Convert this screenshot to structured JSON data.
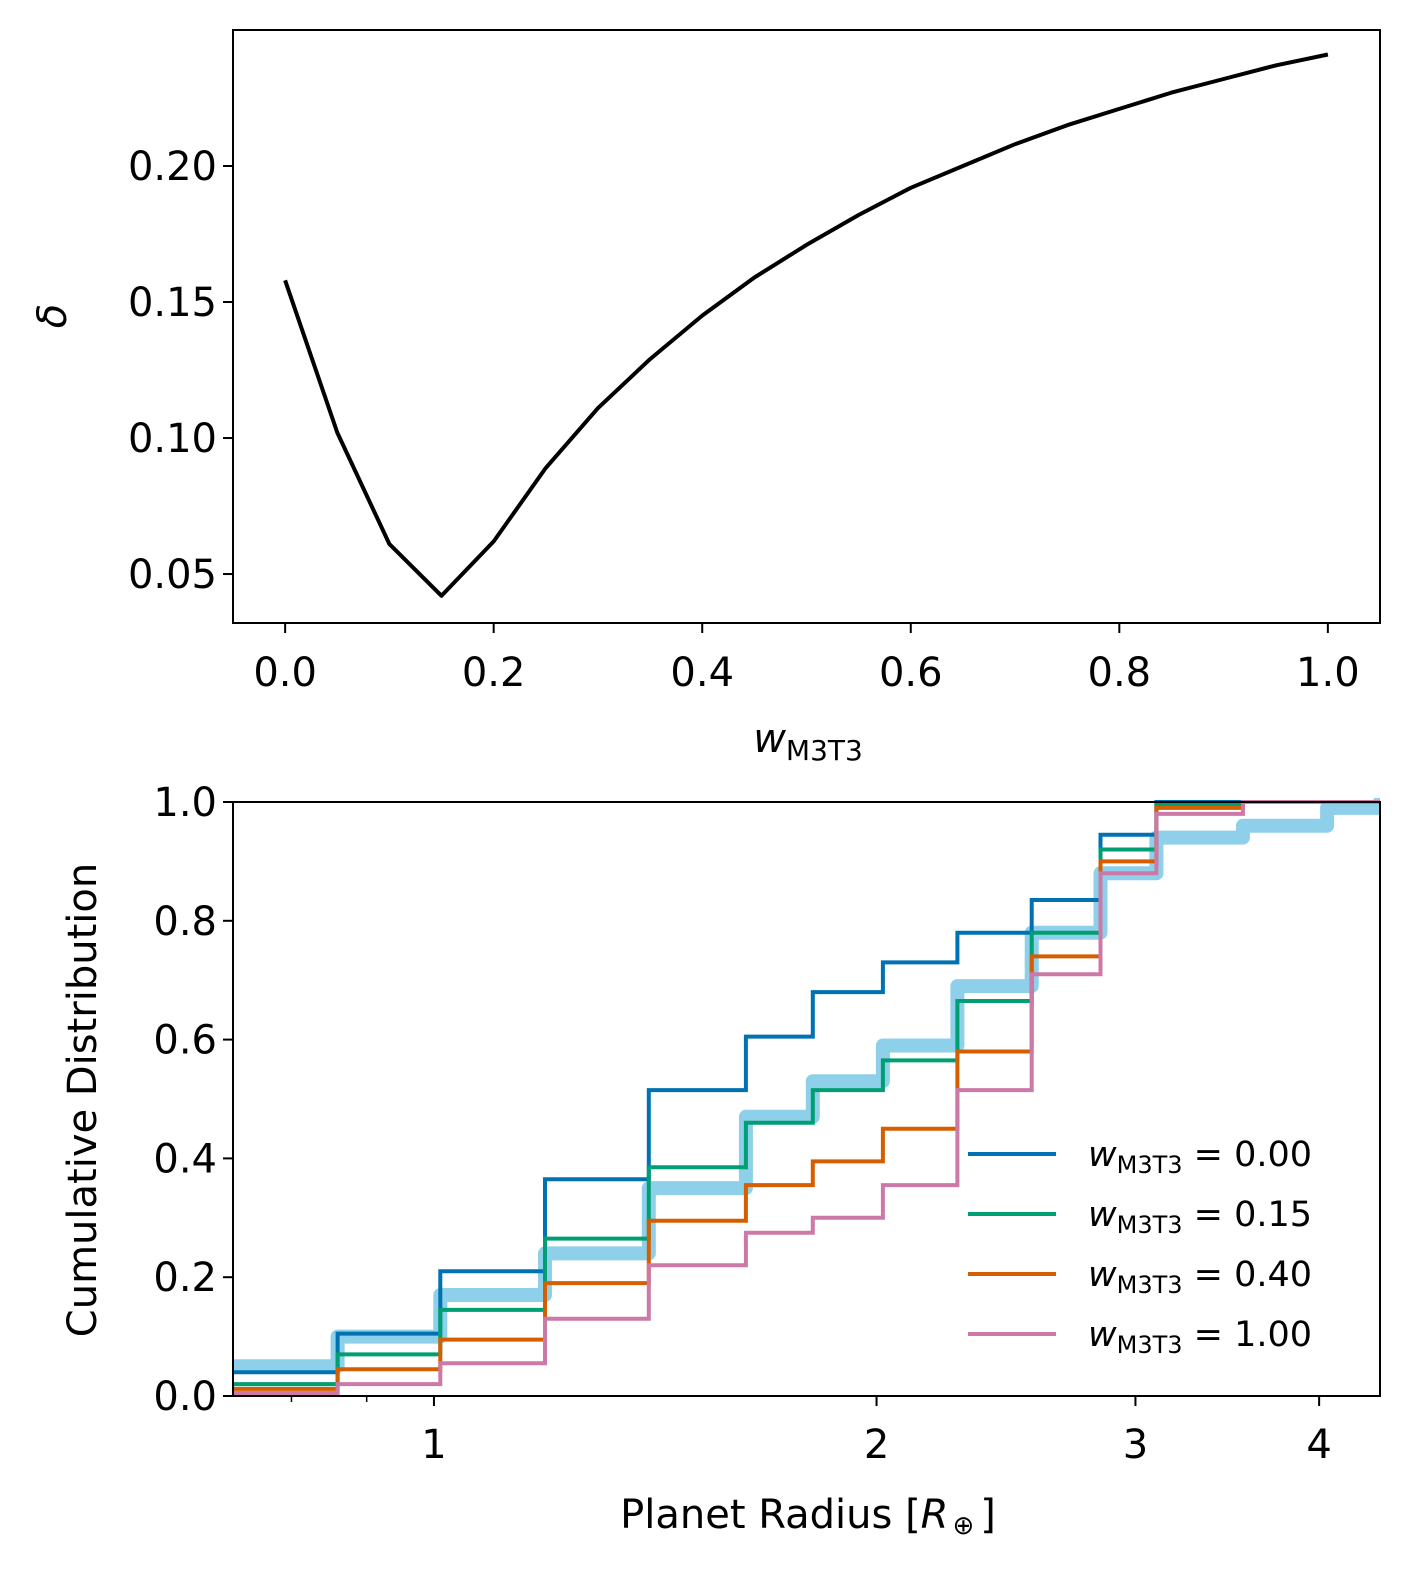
{
  "chart_data": [
    {
      "type": "line",
      "title": "",
      "xlabel": "w",
      "xlabel_sub": "M3T3",
      "ylabel": "δ",
      "xlim": [
        -0.05,
        1.05
      ],
      "ylim": [
        0.032,
        0.25
      ],
      "xticks": [
        0.0,
        0.2,
        0.4,
        0.6,
        0.8,
        1.0
      ],
      "xtick_labels": [
        "0.0",
        "0.2",
        "0.4",
        "0.6",
        "0.8",
        "1.0"
      ],
      "yticks": [
        0.05,
        0.1,
        0.15,
        0.2
      ],
      "ytick_labels": [
        "0.05",
        "0.10",
        "0.15",
        "0.20"
      ],
      "color": "#000000",
      "series": [
        {
          "name": "delta",
          "x": [
            0.0,
            0.05,
            0.1,
            0.15,
            0.2,
            0.25,
            0.3,
            0.35,
            0.4,
            0.45,
            0.5,
            0.55,
            0.6,
            0.65,
            0.7,
            0.75,
            0.8,
            0.85,
            0.9,
            0.95,
            1.0
          ],
          "y": [
            0.158,
            0.102,
            0.061,
            0.042,
            0.062,
            0.089,
            0.111,
            0.129,
            0.145,
            0.159,
            0.171,
            0.182,
            0.192,
            0.2,
            0.208,
            0.215,
            0.221,
            0.227,
            0.232,
            0.237,
            0.241
          ]
        }
      ]
    },
    {
      "type": "step",
      "title": "",
      "xlabel": "Planet Radius [R⊕]",
      "xlabel_main": "Planet Radius [",
      "xlabel_sym": "R",
      "xlabel_sub": "⊕",
      "xlabel_end": "]",
      "ylabel": "Cumulative Distribution",
      "xscale": "log",
      "xlim": [
        0.73,
        4.4
      ],
      "ylim": [
        0.0,
        1.0
      ],
      "xticks": [
        1,
        2,
        3,
        4
      ],
      "xtick_labels": [
        "1",
        "2",
        "3",
        "4"
      ],
      "minor_xticks": [
        0.8,
        0.9
      ],
      "yticks": [
        0.0,
        0.2,
        0.4,
        0.6,
        0.8,
        1.0
      ],
      "ytick_labels": [
        "0.0",
        "0.2",
        "0.4",
        "0.6",
        "0.8",
        "1.0"
      ],
      "legend_position": "lower-right",
      "bin_edges": [
        0.73,
        0.86,
        1.01,
        1.19,
        1.4,
        1.63,
        1.81,
        2.02,
        2.27,
        2.55,
        2.84,
        3.1,
        3.55,
        4.05,
        4.4
      ],
      "observed": {
        "name": "observed",
        "color": "#8ecfea",
        "values": [
          0.05,
          0.1,
          0.17,
          0.24,
          0.35,
          0.47,
          0.53,
          0.59,
          0.69,
          0.78,
          0.88,
          0.94,
          0.96,
          0.99,
          1.0
        ]
      },
      "series": [
        {
          "name": "w_M3T3 = 0.00",
          "legend_prefix": "w",
          "legend_sub": "M3T3",
          "legend_value": " = 0.00",
          "color": "#0072b2",
          "values": [
            0.04,
            0.105,
            0.21,
            0.365,
            0.515,
            0.605,
            0.68,
            0.73,
            0.78,
            0.835,
            0.945,
            1.0,
            1.0,
            1.0,
            1.0
          ]
        },
        {
          "name": "w_M3T3 = 0.15",
          "legend_prefix": "w",
          "legend_sub": "M3T3",
          "legend_value": " = 0.15",
          "color": "#009e73",
          "values": [
            0.02,
            0.07,
            0.145,
            0.265,
            0.385,
            0.46,
            0.515,
            0.565,
            0.665,
            0.78,
            0.92,
            0.995,
            1.0,
            1.0,
            1.0
          ]
        },
        {
          "name": "w_M3T3 = 0.40",
          "legend_prefix": "w",
          "legend_sub": "M3T3",
          "legend_value": " = 0.40",
          "color": "#d55e00",
          "values": [
            0.012,
            0.045,
            0.095,
            0.19,
            0.295,
            0.355,
            0.395,
            0.45,
            0.58,
            0.74,
            0.9,
            0.99,
            1.0,
            1.0,
            1.0
          ]
        },
        {
          "name": "w_M3T3 = 1.00",
          "legend_prefix": "w",
          "legend_sub": "M3T3",
          "legend_value": " = 1.00",
          "color": "#cc79a7",
          "values": [
            0.005,
            0.02,
            0.055,
            0.13,
            0.22,
            0.275,
            0.3,
            0.355,
            0.515,
            0.71,
            0.88,
            0.98,
            1.0,
            1.0,
            1.0
          ]
        }
      ]
    }
  ]
}
